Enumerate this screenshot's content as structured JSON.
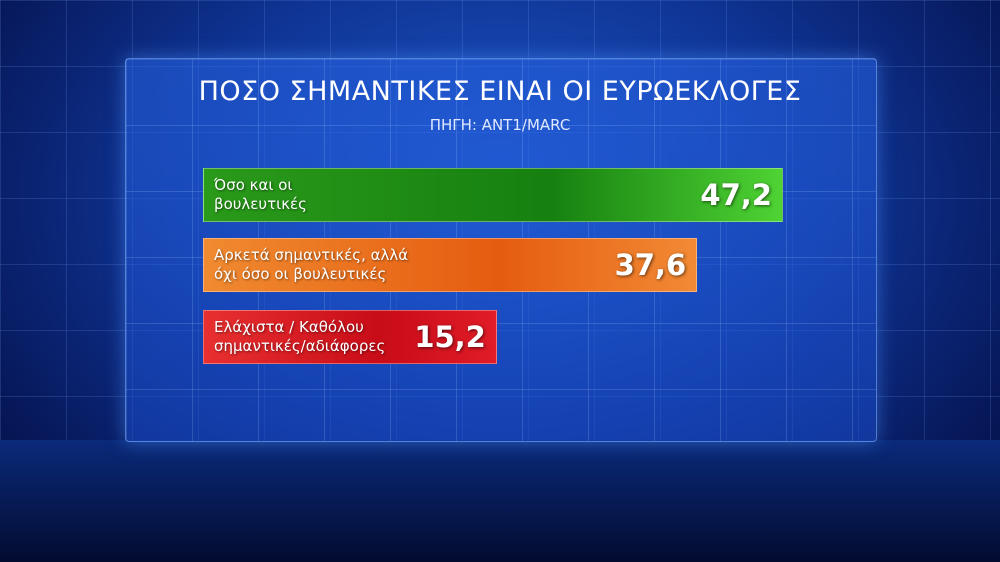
{
  "chart_data": {
    "type": "bar",
    "orientation": "horizontal",
    "title": "ΠΟΣΟ ΣΗΜΑΝΤΙΚΕΣ ΕΙΝΑΙ ΟΙ ΕΥΡΩΕΚΛΟΓΕΣ",
    "subtitle": "ΠΗΓΗ: ΑΝΤ1/MARC",
    "categories": [
      "Όσο και οι\nβουλευτικές",
      "Αρκετά σημαντικές, αλλά\nόχι όσο οι βουλευτικές",
      "Ελάχιστα / Καθόλου\nσημαντικές/αδιάφορες"
    ],
    "values": [
      47.2,
      37.6,
      15.2
    ],
    "value_labels": [
      "47,2",
      "37,6",
      "15,2"
    ],
    "colors": [
      "#2fa01e",
      "#ee6a14",
      "#e0141e"
    ],
    "grid": false
  }
}
